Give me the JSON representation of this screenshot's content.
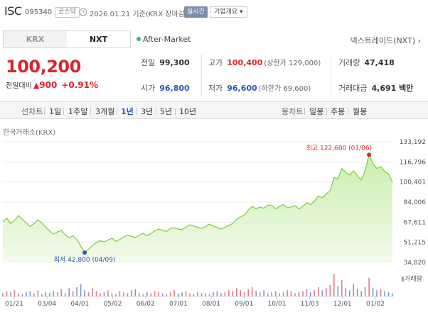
{
  "header": {
    "name": "ISC",
    "code": "095340",
    "market": "코스닥",
    "date": "2026.01.21 기준(KRX 장마감)",
    "realtime": "실시간",
    "overview": "기업개요 ▾"
  },
  "tabs": [
    {
      "label": "KRX",
      "active": false
    },
    {
      "label": "NXT",
      "active": true
    }
  ],
  "after_market": "After-Market",
  "nxt_link": "넥스트레이드(NXT) ›",
  "price": {
    "current": "100,200",
    "change_label": "전일대비",
    "change_arrow": "▲",
    "change": "900",
    "percent": "+0.91%"
  },
  "stats": {
    "prev_label": "전일",
    "prev": "99,300",
    "high_label": "고가",
    "high": "100,400",
    "high_sub": "(상한가 129,000)",
    "vol_label": "거래량",
    "vol": "47,418",
    "open_label": "시가",
    "open": "96,800",
    "low_label": "저가",
    "low": "96,600",
    "low_sub": "(하한가 69,600)",
    "amt_label": "거래대금",
    "amt": "4,691 백만"
  },
  "period": {
    "line_label": "선차트",
    "ranges": [
      "1일",
      "1주일",
      "3개월",
      "1년",
      "3년",
      "5년",
      "10년"
    ],
    "active_range": "1년",
    "candle_label": "봉차트",
    "candles": [
      "일봉",
      "주봉",
      "월봉"
    ]
  },
  "chart_source": "한국거래소(KRX)",
  "volume_legend": "거래량",
  "colors": {
    "up": "#d8252f",
    "down": "#2a57b8",
    "area_line": "#7ccc3e",
    "area_fill": "#c9eeae"
  },
  "chart_data": {
    "type": "area",
    "yticks": [
      "133,192",
      "116,796",
      "100,401",
      "84,006",
      "67,611",
      "51,215",
      "34,820"
    ],
    "ylim": [
      34820,
      133192
    ],
    "xticks": [
      "01/21",
      "03/04",
      "04/01",
      "05/02",
      "06/02",
      "07/01",
      "08/01",
      "09/01",
      "10/01",
      "11/03",
      "12/01",
      "01/02"
    ],
    "max_label": "최고 122,600 (01/06)",
    "max_value": 122600,
    "min_label": "최저 42,800 (04/09)",
    "min_value": 42800,
    "series": [
      {
        "values": [
          68000,
          71000,
          66500,
          69000,
          73000,
          70000,
          67000,
          64000,
          66500,
          69500,
          67000,
          63500,
          60500,
          58000,
          59500,
          61000,
          57500,
          55000,
          56500,
          53500,
          48000,
          42800,
          45500,
          48500,
          51000,
          52500,
          51500,
          53000,
          54500,
          52000,
          53500,
          55500,
          57000,
          56000,
          55000,
          57000,
          58500,
          56500,
          58500,
          60500,
          62000,
          61000,
          60000,
          62500,
          63000,
          62000,
          61500,
          63500,
          65500,
          64500,
          63500,
          62500,
          64000,
          66000,
          64500,
          63500,
          62000,
          63500,
          65000,
          66500,
          70000,
          72000,
          73500,
          77500,
          80500,
          78500,
          80000,
          79000,
          81500,
          81500,
          78500,
          80500,
          82000,
          79500,
          80000,
          81000,
          78500,
          80500,
          83500,
          82000,
          85000,
          89000,
          87500,
          90500,
          93500,
          104000,
          103000,
          111500,
          108500,
          106000,
          109500,
          105500,
          102000,
          110000,
          122600,
          115500,
          111500,
          113000,
          109000,
          107000,
          100200
        ]
      }
    ],
    "volume": [
      3,
      5,
      4,
      6,
      3,
      2,
      4,
      5,
      3,
      6,
      2,
      4,
      3,
      5,
      4,
      7,
      3,
      8,
      5,
      9,
      12,
      6,
      4,
      8,
      5,
      3,
      4,
      6,
      3,
      2,
      5,
      4,
      3,
      6,
      7,
      3,
      2,
      4,
      3,
      5,
      4,
      3,
      2,
      4,
      6,
      3,
      4,
      5,
      3,
      2,
      4,
      3,
      3,
      2,
      4,
      5,
      3,
      4,
      6,
      5,
      8,
      6,
      4,
      7,
      9,
      5,
      4,
      6,
      3,
      4,
      5,
      3,
      4,
      6,
      5,
      3,
      4,
      5,
      7,
      4,
      6,
      9,
      6,
      8,
      11,
      22,
      10,
      16,
      8,
      6,
      12,
      7,
      5,
      9,
      18,
      8,
      6,
      7,
      5,
      4,
      3
    ]
  }
}
